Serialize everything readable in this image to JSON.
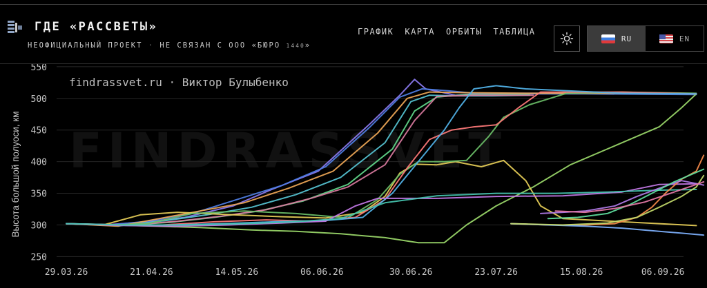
{
  "header": {
    "title": "ГДЕ «РАССВЕТЫ»",
    "subtitle_main": "НЕОФИЦИАЛЬНЫЙ ПРОЕКТ",
    "subtitle_sep": "·",
    "subtitle_rest": "НЕ СВЯЗАН С ООО «БЮРО",
    "subtitle_small": "1440",
    "subtitle_end": "»"
  },
  "nav": [
    {
      "label": "ГРАФИК"
    },
    {
      "label": "КАРТА"
    },
    {
      "label": "ОРБИТЫ"
    },
    {
      "label": "ТАБЛИЦА"
    }
  ],
  "lang": {
    "ru": "RU",
    "en": "EN",
    "active": "ru"
  },
  "icons": {
    "logo": "satellite-icon",
    "theme": "sun-icon",
    "ru_flag": "ru-flag-icon",
    "en_flag": "us-flag-icon"
  },
  "chart_data": {
    "type": "line",
    "annotation": "findrassvet.ru · Виктор Булыбенко",
    "watermark": "FINDRASSVET",
    "ylabel": "Высота большой полуоси, км",
    "ylim": [
      245,
      552
    ],
    "yticks": [
      250,
      300,
      350,
      400,
      450,
      500,
      550
    ],
    "x_start": "29.03.26",
    "x_end": "11.09.26",
    "xtick_labels": [
      "29.03.26",
      "21.04.26",
      "14.05.26",
      "06.06.26",
      "30.06.26",
      "23.07.26",
      "15.08.26",
      "06.09.26"
    ],
    "series": [
      {
        "color": "#8c7bf2",
        "points": [
          [
            0,
            302
          ],
          [
            10,
            300
          ],
          [
            22,
            305
          ],
          [
            32,
            312
          ],
          [
            45,
            330
          ],
          [
            55,
            355
          ],
          [
            68,
            385
          ],
          [
            82,
            460
          ],
          [
            90,
            505
          ],
          [
            94,
            530
          ],
          [
            97,
            515
          ],
          [
            105,
            505
          ],
          [
            112,
            508
          ],
          [
            130,
            508
          ],
          [
            150,
            508
          ],
          [
            170,
            507
          ]
        ]
      },
      {
        "color": "#4f7fe6",
        "points": [
          [
            0,
            302
          ],
          [
            12,
            300
          ],
          [
            22,
            306
          ],
          [
            34,
            318
          ],
          [
            46,
            340
          ],
          [
            58,
            362
          ],
          [
            70,
            392
          ],
          [
            82,
            455
          ],
          [
            90,
            502
          ],
          [
            96,
            515
          ],
          [
            103,
            512
          ],
          [
            112,
            507
          ],
          [
            140,
            507
          ],
          [
            170,
            506
          ]
        ]
      },
      {
        "color": "#f0a857",
        "points": [
          [
            0,
            302
          ],
          [
            14,
            298
          ],
          [
            25,
            310
          ],
          [
            36,
            322
          ],
          [
            48,
            335
          ],
          [
            60,
            358
          ],
          [
            72,
            385
          ],
          [
            84,
            445
          ],
          [
            92,
            500
          ],
          [
            98,
            510
          ],
          [
            108,
            509
          ],
          [
            125,
            508
          ],
          [
            150,
            508
          ],
          [
            170,
            507
          ]
        ]
      },
      {
        "color": "#57c7d6",
        "points": [
          [
            0,
            302
          ],
          [
            15,
            299
          ],
          [
            27,
            307
          ],
          [
            38,
            316
          ],
          [
            50,
            328
          ],
          [
            62,
            348
          ],
          [
            74,
            375
          ],
          [
            86,
            430
          ],
          [
            93,
            495
          ],
          [
            98,
            505
          ],
          [
            105,
            504
          ],
          [
            115,
            504
          ],
          [
            125,
            505
          ]
        ]
      },
      {
        "color": "#62d98b",
        "points": [
          [
            0,
            302
          ],
          [
            16,
            300
          ],
          [
            28,
            304
          ],
          [
            40,
            312
          ],
          [
            52,
            322
          ],
          [
            64,
            338
          ],
          [
            76,
            364
          ],
          [
            88,
            420
          ],
          [
            94,
            480
          ],
          [
            100,
            502
          ],
          [
            108,
            506
          ],
          [
            125,
            506
          ]
        ]
      },
      {
        "color": "#d97a9e",
        "points": [
          [
            0,
            302
          ],
          [
            18,
            300
          ],
          [
            30,
            306
          ],
          [
            42,
            314
          ],
          [
            54,
            324
          ],
          [
            66,
            342
          ],
          [
            76,
            360
          ],
          [
            86,
            395
          ],
          [
            94,
            465
          ],
          [
            100,
            503
          ],
          [
            110,
            505
          ],
          [
            126,
            505
          ]
        ]
      },
      {
        "color": "#9bd96a",
        "points": [
          [
            0,
            302
          ],
          [
            12,
            300
          ],
          [
            24,
            298
          ],
          [
            36,
            296
          ],
          [
            50,
            292
          ],
          [
            62,
            290
          ],
          [
            74,
            286
          ],
          [
            86,
            280
          ],
          [
            95,
            272
          ],
          [
            102,
            272
          ],
          [
            108,
            300
          ],
          [
            116,
            330
          ],
          [
            126,
            360
          ],
          [
            136,
            395
          ],
          [
            150,
            430
          ],
          [
            160,
            455
          ],
          [
            166,
            485
          ],
          [
            170,
            507
          ]
        ]
      },
      {
        "color": "#e8cf58",
        "points": [
          [
            0,
            302
          ],
          [
            10,
            300
          ],
          [
            20,
            316
          ],
          [
            30,
            320
          ],
          [
            45,
            316
          ],
          [
            58,
            313
          ],
          [
            70,
            311
          ],
          [
            80,
            320
          ],
          [
            86,
            345
          ],
          [
            90,
            382
          ],
          [
            94,
            396
          ],
          [
            100,
            395
          ],
          [
            105,
            400
          ],
          [
            112,
            392
          ],
          [
            118,
            402
          ],
          [
            124,
            370
          ],
          [
            128,
            330
          ],
          [
            134,
            310
          ],
          [
            150,
            305
          ],
          [
            170,
            299
          ]
        ]
      },
      {
        "color": "#6bbf68",
        "points": [
          [
            0,
            302
          ],
          [
            12,
            300
          ],
          [
            22,
            302
          ],
          [
            34,
            318
          ],
          [
            48,
            322
          ],
          [
            62,
            318
          ],
          [
            76,
            311
          ],
          [
            84,
            340
          ],
          [
            90,
            380
          ],
          [
            95,
            400
          ],
          [
            102,
            400
          ],
          [
            108,
            402
          ],
          [
            114,
            440
          ],
          [
            118,
            470
          ],
          [
            125,
            490
          ],
          [
            135,
            508
          ],
          [
            150,
            510
          ],
          [
            170,
            508
          ]
        ]
      },
      {
        "color": "#ff7a7a",
        "points": [
          [
            0,
            302
          ],
          [
            14,
            300
          ],
          [
            26,
            300
          ],
          [
            40,
            305
          ],
          [
            54,
            308
          ],
          [
            66,
            306
          ],
          [
            78,
            312
          ],
          [
            86,
            340
          ],
          [
            92,
            390
          ],
          [
            98,
            435
          ],
          [
            104,
            450
          ],
          [
            110,
            455
          ],
          [
            116,
            458
          ],
          [
            122,
            485
          ],
          [
            128,
            510
          ],
          [
            150,
            510
          ],
          [
            170,
            507
          ]
        ]
      },
      {
        "color": "#52b4ea",
        "points": [
          [
            0,
            302
          ],
          [
            14,
            300
          ],
          [
            28,
            300
          ],
          [
            42,
            302
          ],
          [
            56,
            305
          ],
          [
            70,
            307
          ],
          [
            80,
            312
          ],
          [
            88,
            350
          ],
          [
            95,
            400
          ],
          [
            102,
            450
          ],
          [
            106,
            485
          ],
          [
            110,
            515
          ],
          [
            116,
            520
          ],
          [
            124,
            515
          ],
          [
            150,
            508
          ],
          [
            170,
            507
          ]
        ]
      },
      {
        "color": "#c47ae8",
        "points": [
          [
            0,
            302
          ],
          [
            16,
            299
          ],
          [
            30,
            298
          ],
          [
            44,
            300
          ],
          [
            58,
            303
          ],
          [
            70,
            306
          ],
          [
            78,
            330
          ],
          [
            84,
            342
          ],
          [
            100,
            342
          ],
          [
            116,
            345
          ],
          [
            134,
            346
          ],
          [
            150,
            352
          ],
          [
            160,
            364
          ],
          [
            170,
            365
          ]
        ]
      },
      {
        "color": "#45c6b0",
        "points": [
          [
            0,
            302
          ],
          [
            16,
            300
          ],
          [
            32,
            300
          ],
          [
            48,
            302
          ],
          [
            62,
            305
          ],
          [
            74,
            310
          ],
          [
            86,
            335
          ],
          [
            100,
            346
          ],
          [
            116,
            350
          ],
          [
            132,
            350
          ],
          [
            146,
            352
          ],
          [
            160,
            355
          ],
          [
            170,
            356
          ]
        ]
      },
      {
        "color": "#f58a4a",
        "points": [
          [
            120,
            302
          ],
          [
            130,
            300
          ],
          [
            140,
            300
          ],
          [
            148,
            302
          ],
          [
            154,
            312
          ],
          [
            158,
            328
          ],
          [
            162,
            352
          ],
          [
            166,
            372
          ],
          [
            170,
            385
          ],
          [
            172,
            410
          ]
        ]
      },
      {
        "color": "#7fb2ff",
        "points": [
          [
            120,
            302
          ],
          [
            130,
            300
          ],
          [
            140,
            298
          ],
          [
            150,
            295
          ],
          [
            160,
            290
          ],
          [
            166,
            287
          ],
          [
            172,
            284
          ]
        ]
      },
      {
        "color": "#c2d96a",
        "points": [
          [
            120,
            302
          ],
          [
            134,
            300
          ],
          [
            146,
            303
          ],
          [
            154,
            312
          ],
          [
            160,
            328
          ],
          [
            166,
            345
          ],
          [
            170,
            360
          ],
          [
            172,
            378
          ]
        ]
      },
      {
        "color": "#b07be8",
        "points": [
          [
            128,
            318
          ],
          [
            134,
            320
          ],
          [
            140,
            322
          ],
          [
            148,
            330
          ],
          [
            154,
            345
          ],
          [
            160,
            358
          ],
          [
            166,
            370
          ],
          [
            172,
            363
          ]
        ]
      },
      {
        "color": "#5fe0a0",
        "points": [
          [
            130,
            310
          ],
          [
            138,
            312
          ],
          [
            146,
            318
          ],
          [
            152,
            332
          ],
          [
            158,
            350
          ],
          [
            164,
            368
          ],
          [
            172,
            388
          ]
        ]
      },
      {
        "color": "#e67aa8",
        "points": [
          [
            132,
            322
          ],
          [
            140,
            320
          ],
          [
            148,
            326
          ],
          [
            156,
            336
          ],
          [
            162,
            348
          ],
          [
            168,
            360
          ],
          [
            172,
            368
          ]
        ]
      }
    ]
  }
}
